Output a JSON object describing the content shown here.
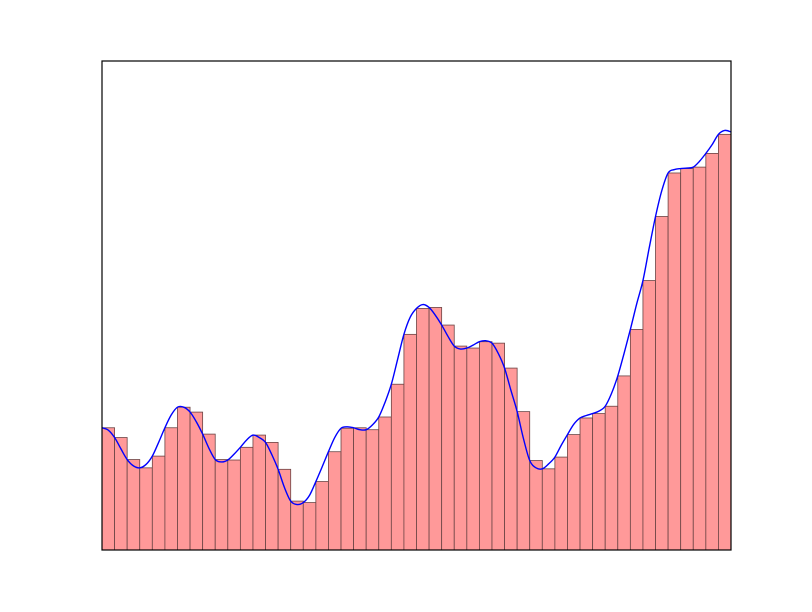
{
  "chart_data": {
    "type": "bar",
    "title": "",
    "xlabel": "",
    "ylabel": "",
    "xlim": [
      0,
      50
    ],
    "ylim": [
      0,
      1
    ],
    "grid": false,
    "colors": {
      "bar_fill": "#ff9999",
      "bar_edge": "#6b4444",
      "line": "#0000ff",
      "axes": "#000000",
      "background": "#ffffff"
    },
    "values": [
      0.25,
      0.23,
      0.185,
      0.168,
      0.192,
      0.25,
      0.292,
      0.282,
      0.237,
      0.185,
      0.184,
      0.21,
      0.235,
      0.22,
      0.165,
      0.1,
      0.097,
      0.14,
      0.201,
      0.249,
      0.25,
      0.246,
      0.272,
      0.339,
      0.441,
      0.494,
      0.496,
      0.46,
      0.417,
      0.413,
      0.426,
      0.423,
      0.372,
      0.283,
      0.183,
      0.166,
      0.19,
      0.236,
      0.27,
      0.279,
      0.294,
      0.356,
      0.451,
      0.551,
      0.682,
      0.771,
      0.78,
      0.783,
      0.811,
      0.85
    ],
    "series": [
      {
        "type": "line",
        "x": [
          0,
          0.5,
          1,
          1.5,
          2,
          2.5,
          3,
          3.5,
          4,
          4.5,
          5,
          5.5,
          6,
          6.5,
          7,
          7.5,
          8,
          8.5,
          9,
          9.5,
          10,
          10.5,
          11,
          11.5,
          12,
          12.5,
          13,
          13.5,
          14,
          14.5,
          15,
          15.5,
          16,
          16.5,
          17,
          17.5,
          18,
          18.5,
          19,
          19.5,
          20,
          20.5,
          21,
          21.5,
          22,
          22.5,
          23,
          23.5,
          24,
          24.5,
          25,
          25.5,
          26,
          26.5,
          27,
          27.5,
          28,
          28.5,
          29,
          29.5,
          30,
          30.5,
          31,
          31.5,
          32,
          32.5,
          33,
          33.5,
          34,
          34.5,
          35,
          35.5,
          36,
          36.5,
          37,
          37.5,
          38,
          38.5,
          39,
          39.5,
          40,
          40.5,
          41,
          41.5,
          42,
          42.5,
          43,
          43.5,
          44,
          44.5,
          45,
          45.5,
          46,
          46.5,
          47,
          47.5,
          48,
          48.5,
          49,
          49.5,
          50
        ],
        "y": [
          0.25,
          0.245,
          0.23,
          0.207,
          0.185,
          0.172,
          0.168,
          0.175,
          0.192,
          0.22,
          0.25,
          0.276,
          0.292,
          0.292,
          0.282,
          0.262,
          0.237,
          0.208,
          0.185,
          0.18,
          0.184,
          0.196,
          0.21,
          0.225,
          0.235,
          0.23,
          0.22,
          0.195,
          0.165,
          0.128,
          0.1,
          0.093,
          0.097,
          0.112,
          0.14,
          0.17,
          0.201,
          0.23,
          0.249,
          0.252,
          0.25,
          0.246,
          0.246,
          0.256,
          0.272,
          0.302,
          0.339,
          0.39,
          0.441,
          0.476,
          0.494,
          0.502,
          0.496,
          0.48,
          0.46,
          0.437,
          0.417,
          0.411,
          0.413,
          0.419,
          0.426,
          0.428,
          0.423,
          0.402,
          0.372,
          0.327,
          0.283,
          0.228,
          0.183,
          0.168,
          0.166,
          0.176,
          0.19,
          0.214,
          0.236,
          0.257,
          0.27,
          0.275,
          0.279,
          0.284,
          0.294,
          0.32,
          0.356,
          0.402,
          0.451,
          0.503,
          0.551,
          0.618,
          0.682,
          0.735,
          0.771,
          0.778,
          0.78,
          0.781,
          0.783,
          0.795,
          0.811,
          0.829,
          0.85,
          0.858,
          0.855
        ]
      }
    ]
  }
}
